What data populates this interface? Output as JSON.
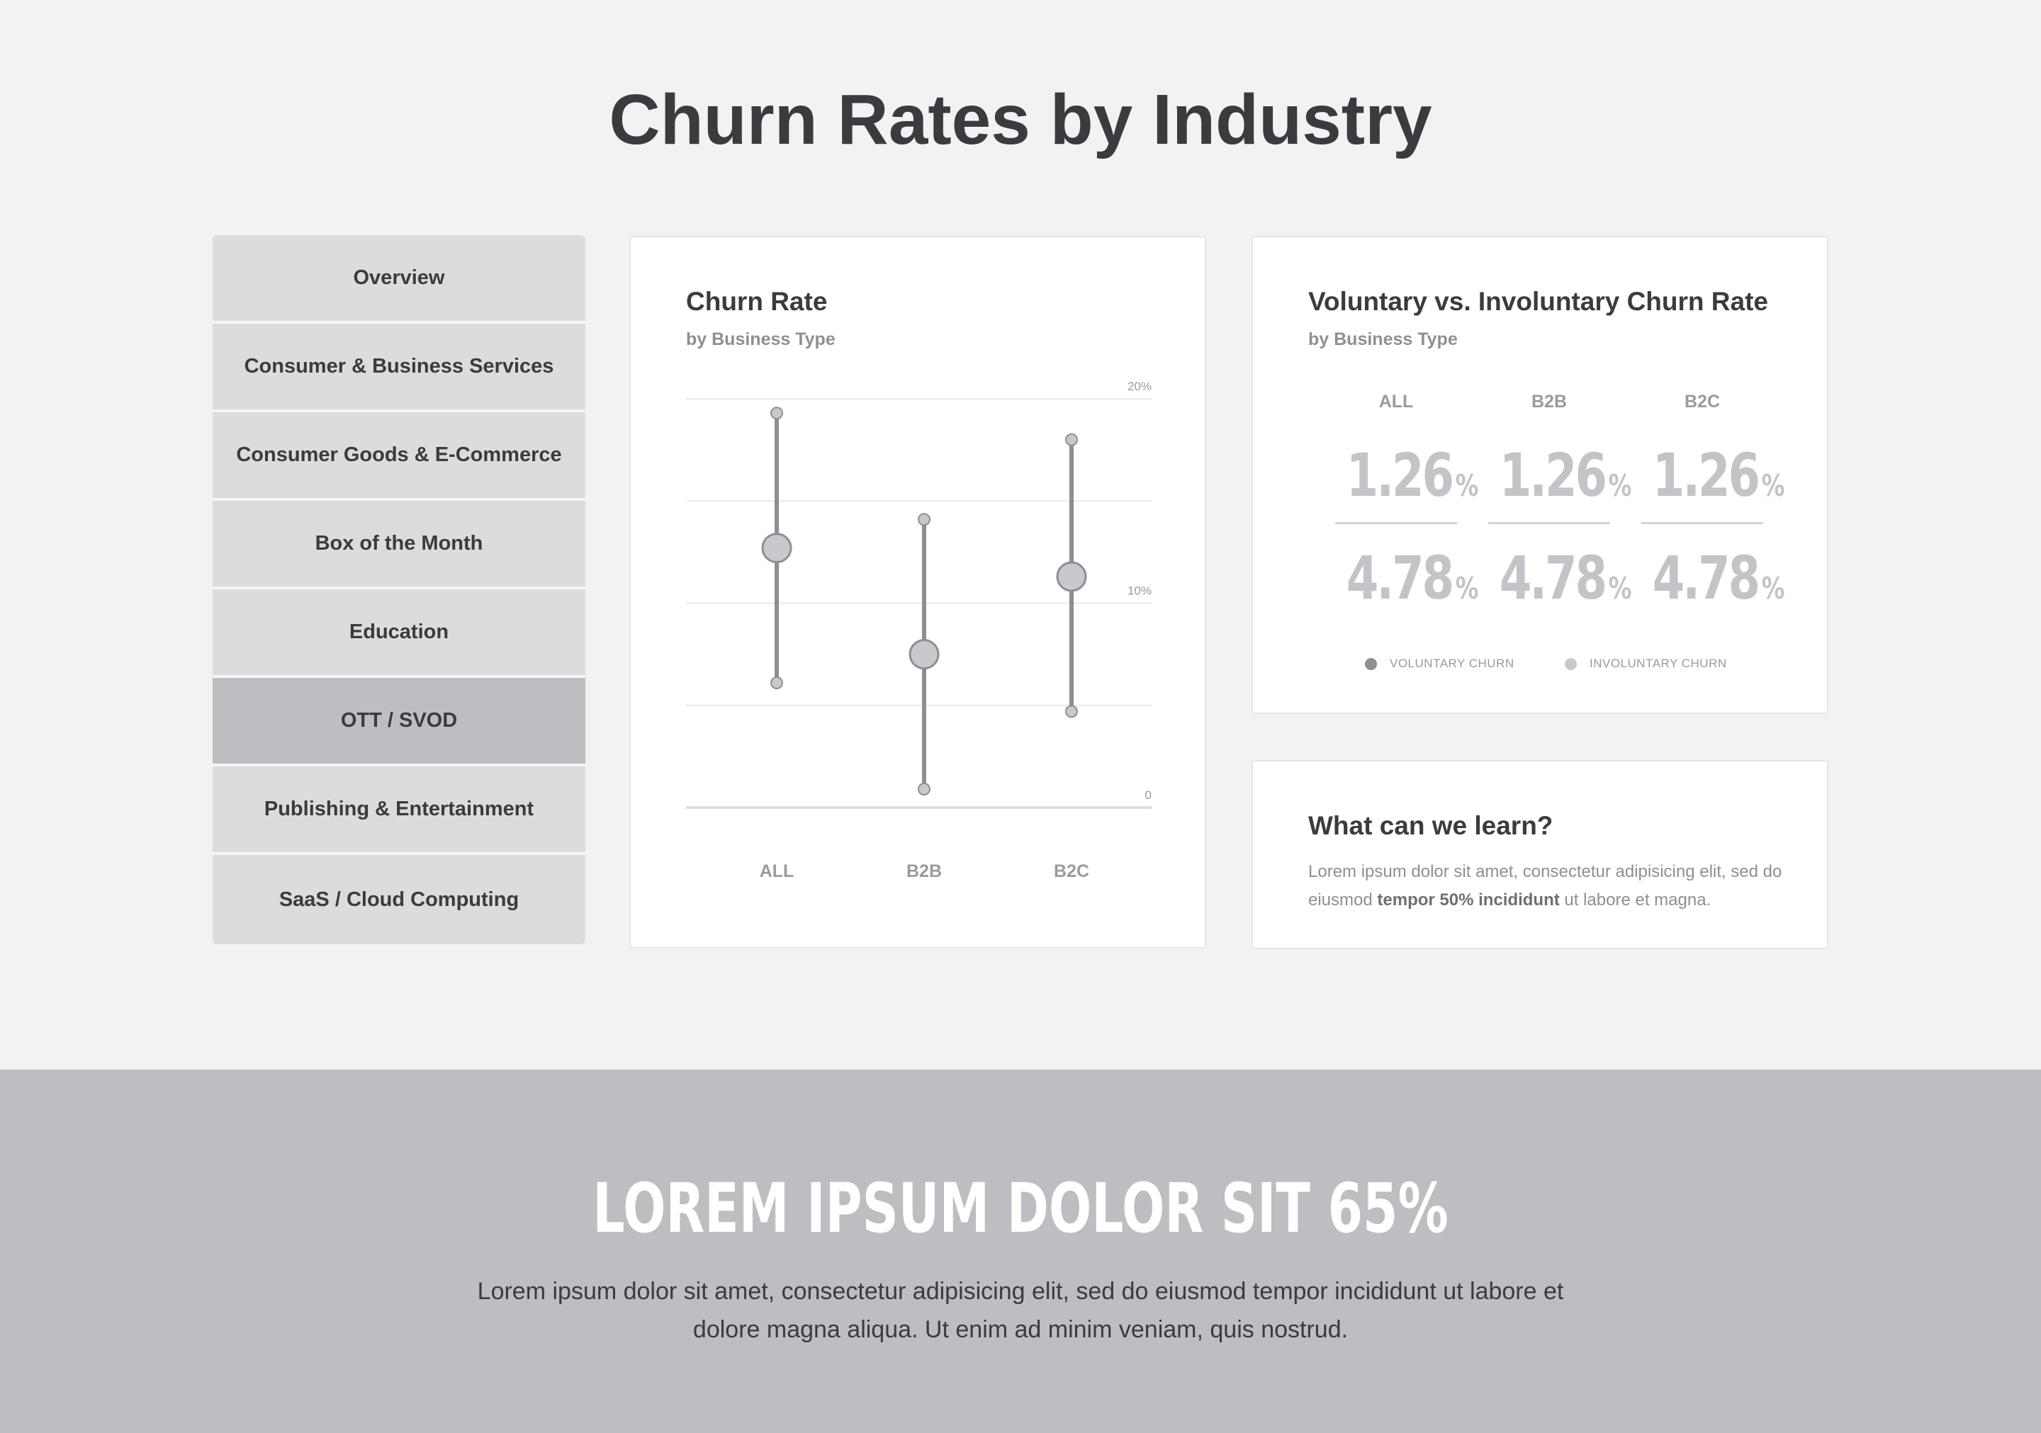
{
  "page": {
    "title": "Churn Rates by Industry"
  },
  "sidebar": {
    "items": [
      {
        "label": "Overview"
      },
      {
        "label": "Consumer & Business Services"
      },
      {
        "label": "Consumer Goods & E-Commerce"
      },
      {
        "label": "Box of the Month"
      },
      {
        "label": "Education"
      },
      {
        "label": "OTT / SVOD",
        "active": true
      },
      {
        "label": "Publishing & Entertainment"
      },
      {
        "label": "SaaS / Cloud Computing"
      }
    ]
  },
  "churn_card": {
    "title": "Churn Rate",
    "subtitle": "by Business Type"
  },
  "chart_data": {
    "type": "scatter",
    "title": "Churn Rate",
    "subtitle": "by Business Type",
    "categories": [
      "ALL",
      "B2B",
      "B2C"
    ],
    "yticks": [
      "0",
      "10%",
      "20%"
    ],
    "ylim": [
      0,
      20
    ],
    "grid": true,
    "series": [
      {
        "category": "ALL",
        "low": 6.1,
        "mid": 12.7,
        "high": 19.3
      },
      {
        "category": "B2B",
        "low": 0.9,
        "mid": 7.5,
        "high": 14.1
      },
      {
        "category": "B2C",
        "low": 4.7,
        "mid": 11.3,
        "high": 18.0
      }
    ]
  },
  "vol_card": {
    "title": "Voluntary vs. Involuntary Churn Rate",
    "subtitle": "by Business Type",
    "columns": [
      {
        "head": "ALL",
        "voluntary": "1.26",
        "involuntary": "4.78"
      },
      {
        "head": "B2B",
        "voluntary": "1.26",
        "involuntary": "4.78"
      },
      {
        "head": "B2C",
        "voluntary": "1.26",
        "involuntary": "4.78"
      }
    ],
    "pct": "%",
    "legend": {
      "voluntary": "VOLUNTARY CHURN",
      "involuntary": "INVOLUNTARY CHURN",
      "voluntary_color": "#8e8e93",
      "involuntary_color": "#c9c9cd"
    }
  },
  "learn_card": {
    "title": "What can we learn?",
    "text_before": "Lorem ipsum dolor sit amet, consectetur adipisicing elit, sed do eiusmod ",
    "text_bold": "tempor 50% incididunt",
    "text_after": " ut labore et magna."
  },
  "band": {
    "title": "LOREM IPSUM DOLOR SIT 65%",
    "text": "Lorem ipsum dolor sit amet, consectetur adipisicing elit, sed do eiusmod tempor incididunt ut labore et dolore magna aliqua. Ut enim ad minim veniam, quis nostrud."
  },
  "colors": {
    "background": "#f2f2f4",
    "sidebar_item": "#dcdcde",
    "sidebar_active": "#bebec2",
    "band": "#bebec2",
    "chart_line": "#8e8e93",
    "chart_dot": "#c9c9cd"
  }
}
